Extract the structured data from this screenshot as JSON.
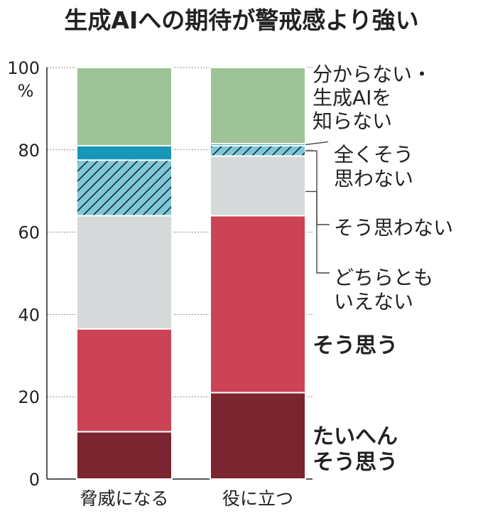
{
  "chart_data": {
    "type": "bar",
    "stacked": true,
    "title": "生成AIへの期待が警戒感より強い",
    "y_unit": "%",
    "ylim": [
      0,
      100
    ],
    "yticks": [
      0,
      20,
      40,
      60,
      80,
      100
    ],
    "grid": true,
    "categories": [
      "脅威になる",
      "役に立つ"
    ],
    "series": [
      {
        "name": "たいへん そう思う",
        "label_lines": [
          "たいへん",
          "そう思う"
        ],
        "values": [
          11.5,
          21
        ],
        "color": "#7b2530",
        "bold": true
      },
      {
        "name": "そう思う",
        "label_lines": [
          "そう思う"
        ],
        "values": [
          25,
          43
        ],
        "color": "#cc4356",
        "bold": true
      },
      {
        "name": "どちらとも いえない",
        "label_lines": [
          "どちらとも",
          "いえない"
        ],
        "values": [
          27.5,
          14.5
        ],
        "color": "#d6d9da",
        "bold": false
      },
      {
        "name": "そう思わない",
        "label_lines": [
          "そう思わない"
        ],
        "values": [
          13.5,
          2.5
        ],
        "color": "#7ec8d8",
        "hatch": true,
        "bold": false
      },
      {
        "name": "全く そう 思わない",
        "label_lines": [
          "全くそう",
          "思わない"
        ],
        "values": [
          3.5,
          0.5
        ],
        "color": "#1797b8",
        "bold": false
      },
      {
        "name": "分からない・生成AIを知らない",
        "label_lines": [
          "分からない・",
          "生成AIを",
          "知らない"
        ],
        "values": [
          19,
          18.5
        ],
        "color": "#9ec396",
        "bold": false
      }
    ]
  }
}
